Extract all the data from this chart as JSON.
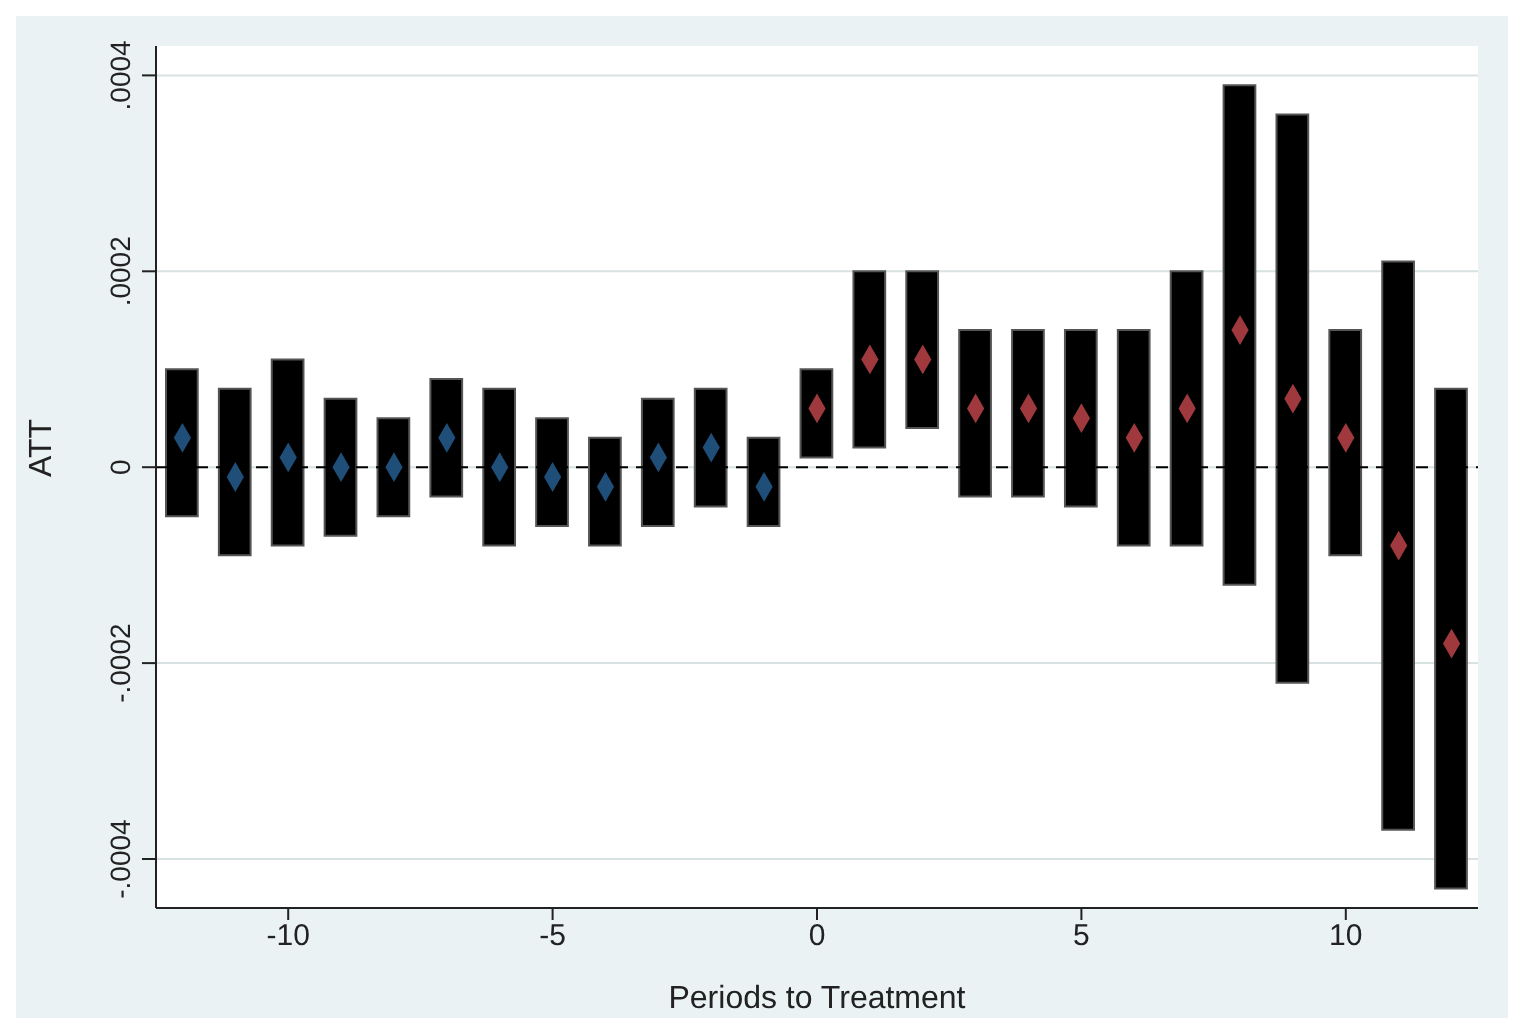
{
  "chart_data": {
    "type": "bar",
    "xlabel": "Periods to Treatment",
    "ylabel": "ATT",
    "x": [
      -12,
      -11,
      -10,
      -9,
      -8,
      -7,
      -6,
      -5,
      -4,
      -3,
      -2,
      -1,
      0,
      1,
      2,
      3,
      4,
      5,
      6,
      7,
      8,
      9,
      10,
      11,
      12
    ],
    "series": [
      {
        "color": "#000000",
        "base": [
          -5e-05,
          -9e-05,
          -8e-05,
          -7e-05,
          -5e-05,
          -3e-05,
          -8e-05,
          -6e-05,
          -8e-05,
          -6e-05,
          -4e-05,
          -6e-05,
          1e-05,
          2e-05,
          4e-05,
          -3e-05,
          -3e-05,
          -4e-05,
          -8e-05,
          -8e-05,
          -0.00012,
          -0.00022,
          -9e-05,
          -0.00037,
          -0.00043
        ],
        "values": [
          0.00015,
          0.00017,
          0.00019,
          0.00014,
          0.0001,
          0.00012,
          0.00016,
          0.00011,
          0.00011,
          0.00013,
          0.00012,
          9e-05,
          9e-05,
          0.00018,
          0.00016,
          0.00017,
          0.00017,
          0.00018,
          0.00022,
          0.00028,
          0.00051,
          0.00058,
          0.00023,
          0.00058,
          0.00051
        ]
      },
      {
        "type": "scatter",
        "color": "#1f4e79",
        "x": [
          -12,
          -11,
          -10,
          -9,
          -8,
          -7,
          -6,
          -5,
          -4,
          -3,
          -2,
          -1
        ],
        "values": [
          3e-05,
          -1e-05,
          1e-05,
          0.0,
          0.0,
          3e-05,
          0.0,
          -1e-05,
          -2e-05,
          1e-05,
          2e-05,
          -2e-05
        ]
      },
      {
        "type": "scatter",
        "color": "#a0393d",
        "x": [
          0,
          1,
          2,
          3,
          4,
          5,
          6,
          7,
          8,
          9,
          10,
          11,
          12
        ],
        "values": [
          6e-05,
          0.00011,
          0.00011,
          6e-05,
          6e-05,
          5e-05,
          3e-05,
          6e-05,
          0.00014,
          7e-05,
          3e-05,
          -8e-05,
          -0.00018
        ]
      }
    ],
    "marker": "diamond",
    "xlim": [
      -12.5,
      12.5
    ],
    "xticks": [
      -10,
      -5,
      0,
      5,
      10
    ],
    "ylim": [
      -0.00045,
      0.00043
    ],
    "yticks": [
      {
        "value": -0.0004,
        "label": "-.0004"
      },
      {
        "value": -0.0002,
        "label": "-.0002"
      },
      {
        "value": 0,
        "label": "0"
      },
      {
        "value": 0.0002,
        "label": ".0002"
      },
      {
        "value": 0.0004,
        "label": ".0004"
      }
    ],
    "grid": "y",
    "ref_lines": [
      {
        "axis": "y",
        "value": 0,
        "color": "#000000",
        "line_style": "dashed"
      }
    ]
  }
}
